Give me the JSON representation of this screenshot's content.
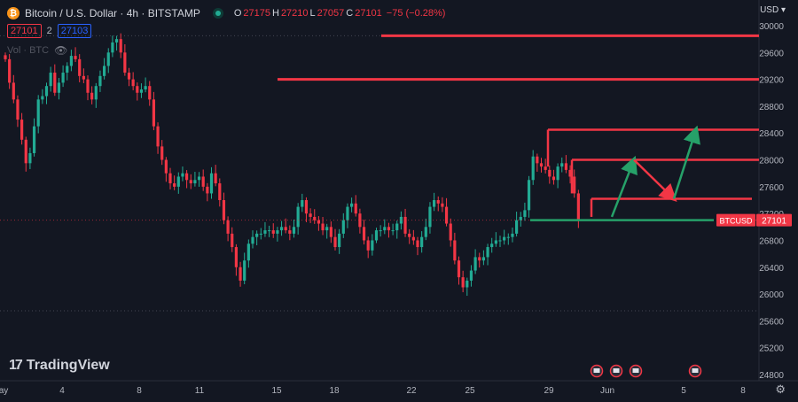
{
  "header": {
    "btc_icon": "bitcoin-icon",
    "symbol_title": "Bitcoin / U.S. Dollar · 4h · BITSTAMP",
    "ohlc": [
      {
        "k": "O",
        "v": "27175"
      },
      {
        "k": "H",
        "v": "27210"
      },
      {
        "k": "L",
        "v": "27057"
      },
      {
        "k": "C",
        "v": "27101"
      }
    ],
    "change": "−75 (−0.28%)",
    "bid": "27101",
    "spread": "2",
    "ask": "27103",
    "volume_label": "Vol · BTC",
    "currency": "USD"
  },
  "branding": {
    "logo_text": "TradingView"
  },
  "colors": {
    "background": "#131722",
    "up": "#22ab94",
    "down": "#f23645",
    "drawing_red": "#f23645",
    "drawing_green": "#26a169"
  },
  "chart_data": {
    "type": "candlestick",
    "symbol": "BTCUSD",
    "timeframe": "4h",
    "last_price": 27101,
    "last_price_label": "27101",
    "ylim": [
      24600,
      30100
    ],
    "y_ticks": [
      30000,
      29600,
      29200,
      28800,
      28400,
      28000,
      27600,
      27200,
      26800,
      26400,
      26000,
      25600,
      25200,
      24800
    ],
    "x_ticks": [
      "ay",
      "4",
      "8",
      "11",
      "15",
      "18",
      "22",
      "25",
      "29",
      "Jun",
      "5",
      "8"
    ],
    "grid": false,
    "closes": [
      29500,
      29150,
      28900,
      28600,
      28300,
      27950,
      28100,
      28500,
      28900,
      28950,
      29100,
      29300,
      29000,
      29150,
      29300,
      29400,
      29550,
      29500,
      29250,
      29200,
      29000,
      28900,
      29100,
      29250,
      29400,
      29600,
      29750,
      29800,
      29600,
      29300,
      29200,
      29100,
      29000,
      29050,
      29100,
      28900,
      28500,
      28200,
      28000,
      27800,
      27650,
      27600,
      27750,
      27800,
      27700,
      27650,
      27700,
      27750,
      27600,
      27500,
      27800,
      27650,
      27400,
      27100,
      26900,
      26700,
      26400,
      26200,
      26500,
      26750,
      26850,
      26900,
      26900,
      26950,
      26950,
      26900,
      26950,
      27000,
      26950,
      26900,
      27000,
      27300,
      27400,
      27200,
      27150,
      27100,
      27050,
      26950,
      27000,
      26850,
      26700,
      26900,
      27100,
      27300,
      27350,
      27200,
      27000,
      26800,
      26650,
      26800,
      26950,
      26950,
      27000,
      26950,
      26950,
      27050,
      27150,
      26900,
      26850,
      26800,
      26700,
      26850,
      27000,
      27300,
      27400,
      27350,
      27300,
      27050,
      26800,
      26500,
      26250,
      26100,
      26200,
      26350,
      26550,
      26500,
      26550,
      26700,
      26750,
      26800,
      26800,
      26850,
      26850,
      26900,
      27100,
      27150,
      27250,
      27700,
      28050,
      27950,
      27900,
      27850,
      27750,
      27700,
      27900,
      27950,
      27850,
      27750,
      27500,
      27101
    ],
    "volume_series_label": "Vol · BTC",
    "drawings": {
      "resistance_lines": [
        29850,
        29200,
        28450,
        28000
      ],
      "support_line": 27101,
      "forecast_path": [
        27150,
        28000,
        27420,
        28450
      ],
      "red_zone_levels": [
        28450,
        28000,
        27420
      ]
    },
    "event_markers": 4
  }
}
